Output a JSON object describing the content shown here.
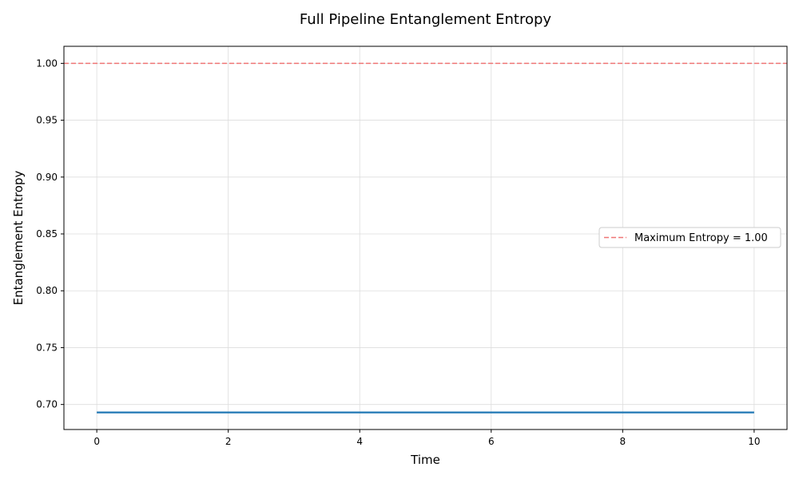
{
  "chart_data": {
    "type": "line",
    "title": "Full Pipeline Entanglement Entropy",
    "xlabel": "Time",
    "ylabel": "Entanglement Entropy",
    "xlim": [
      -0.5,
      10.5
    ],
    "ylim": [
      0.678,
      1.015
    ],
    "xticks": [
      0,
      2,
      4,
      6,
      8,
      10
    ],
    "yticks": [
      0.7,
      0.75,
      0.8,
      0.85,
      0.9,
      0.95,
      1.0
    ],
    "grid": true,
    "series": [
      {
        "color": "#1f77b4",
        "style": "solid",
        "x": [
          0,
          10
        ],
        "y": [
          0.693,
          0.693
        ]
      }
    ],
    "reference_lines": [
      {
        "name": "Maximum Entropy = 1.00",
        "orientation": "horizontal",
        "y": 1.0,
        "color": "#ef7676",
        "style": "dashed"
      }
    ],
    "legend": {
      "position": "center-right",
      "entries": [
        "Maximum Entropy = 1.00"
      ]
    }
  }
}
